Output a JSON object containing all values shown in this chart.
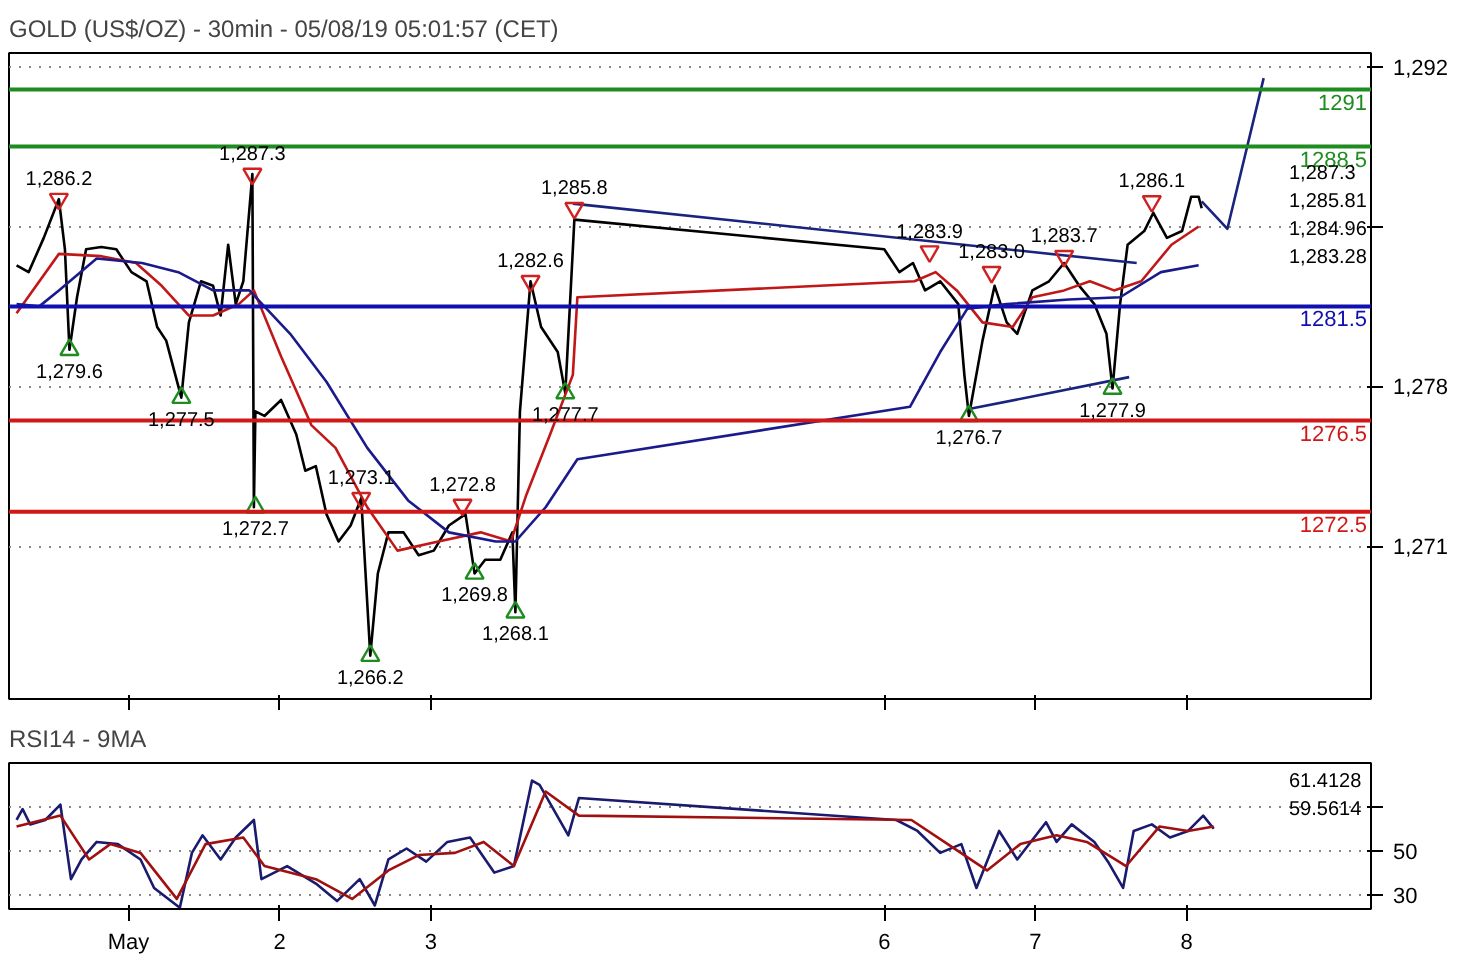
{
  "chart_data": [
    {
      "type": "line",
      "title": "GOLD (US$/OZ) - 30min - 05/08/19 05:01:57 (CET)",
      "xlim": [
        0.21,
        9.22
      ],
      "xticks": [
        1,
        2,
        3,
        6,
        7,
        8
      ],
      "ylim": [
        1264.3,
        1292.6
      ],
      "yticks": [
        {
          "value": 1271,
          "label": "1,271"
        },
        {
          "value": 1278,
          "label": "1,278"
        },
        {
          "value": 1285,
          "label": null
        },
        {
          "value": 1292,
          "label": "1,292"
        }
      ],
      "tick_labels": "y",
      "grid": "y",
      "ref_lines": [
        {
          "axis": "y",
          "value": 1291,
          "label": "1291",
          "color": "#1e8c1e"
        },
        {
          "axis": "y",
          "value": 1288.5,
          "label": "1288.5",
          "color": "#1e8c1e"
        },
        {
          "axis": "y",
          "value": 1281.5,
          "label": "1281.5",
          "color": "#1010b0"
        },
        {
          "axis": "y",
          "value": 1276.5,
          "label": "1276.5",
          "color": "#d01818"
        },
        {
          "axis": "y",
          "value": 1272.5,
          "label": "1272.5",
          "color": "#d01818"
        }
      ],
      "annotations": [
        "1,287.3",
        "1,285.81",
        "1,284.96",
        "1,283.28"
      ],
      "series": [
        {
          "color": "#000000",
          "x": [
            0.26,
            0.34,
            0.44,
            0.54,
            0.58,
            0.61,
            0.66,
            0.72,
            0.82,
            0.92,
            1.02,
            1.12,
            1.19,
            1.25,
            1.35,
            1.4,
            1.48,
            1.56,
            1.61,
            1.66,
            1.71,
            1.76,
            1.82,
            1.83,
            1.84,
            1.9,
            2.01,
            2.11,
            2.17,
            2.24,
            2.31,
            2.39,
            2.47,
            2.54,
            2.6,
            2.65,
            2.72,
            2.82,
            2.92,
            3.02,
            3.12,
            3.23,
            3.29,
            3.36,
            3.46,
            3.54,
            3.56,
            3.59,
            3.66,
            3.73,
            3.84,
            3.89,
            3.94,
            3.95,
            6.0,
            6.1,
            6.19,
            6.27,
            6.37,
            6.49,
            6.53,
            6.56,
            6.65,
            6.73,
            6.81,
            6.88,
            6.98,
            7.09,
            7.19,
            7.29,
            7.39,
            7.47,
            7.51,
            7.56,
            7.61,
            7.72,
            7.78,
            7.87,
            7.97,
            8.03,
            8.08,
            8.1
          ],
          "values": [
            1283.3,
            1283.0,
            1284.5,
            1286.2,
            1284.0,
            1279.6,
            1281.9,
            1284.0,
            1284.1,
            1284.0,
            1283.0,
            1282.6,
            1280.6,
            1280.0,
            1277.5,
            1280.8,
            1282.6,
            1282.4,
            1281.1,
            1284.2,
            1281.6,
            1282.6,
            1287.3,
            1272.7,
            1276.9,
            1276.7,
            1277.4,
            1275.9,
            1274.3,
            1274.5,
            1272.4,
            1271.2,
            1271.9,
            1273.1,
            1266.2,
            1269.8,
            1271.6,
            1271.6,
            1270.6,
            1270.8,
            1271.9,
            1272.4,
            1269.8,
            1270.4,
            1270.4,
            1271.6,
            1268.1,
            1276.9,
            1282.6,
            1280.6,
            1279.5,
            1277.7,
            1284.0,
            1285.3,
            1284.0,
            1283.0,
            1283.4,
            1282.2,
            1282.6,
            1281.6,
            1278.5,
            1276.7,
            1280.0,
            1282.4,
            1280.8,
            1280.3,
            1282.2,
            1282.6,
            1283.4,
            1282.4,
            1281.6,
            1280.3,
            1277.9,
            1281.6,
            1284.2,
            1284.8,
            1285.6,
            1284.5,
            1284.8,
            1286.3,
            1286.3,
            1285.8
          ]
        },
        {
          "color": "#c01818",
          "x": [
            0.26,
            0.54,
            0.82,
            1.05,
            1.22,
            1.4,
            1.56,
            1.73,
            1.83,
            2.01,
            2.21,
            2.37,
            2.58,
            2.78,
            3.05,
            3.33,
            3.53,
            3.63,
            3.79,
            3.94,
            3.97,
            6.2,
            6.34,
            6.48,
            6.65,
            6.85,
            6.98,
            7.19,
            7.36,
            7.52,
            7.7,
            7.9,
            8.08
          ],
          "values": [
            1281.2,
            1283.8,
            1283.7,
            1283.4,
            1282.4,
            1281.1,
            1281.1,
            1281.6,
            1282.2,
            1279.3,
            1276.3,
            1275.3,
            1272.7,
            1270.8,
            1271.2,
            1271.6,
            1271.2,
            1273.2,
            1275.9,
            1278.5,
            1281.9,
            1282.6,
            1283.0,
            1282.2,
            1280.8,
            1280.6,
            1281.9,
            1282.2,
            1282.6,
            1282.2,
            1282.6,
            1284.2,
            1285.0
          ]
        },
        {
          "color": "#1a1a8c",
          "x": [
            0.26,
            0.41,
            0.54,
            0.79,
            1.09,
            1.33,
            1.56,
            1.8,
            2.07,
            2.31,
            2.58,
            2.85,
            3.12,
            3.43,
            3.56,
            3.76,
            3.97,
            6.17,
            6.37,
            6.55,
            6.81,
            7.22,
            7.56,
            7.83,
            8.08
          ],
          "values": [
            1281.6,
            1281.5,
            1282.2,
            1283.6,
            1283.4,
            1283.0,
            1282.2,
            1282.2,
            1280.3,
            1278.2,
            1275.3,
            1273.0,
            1271.6,
            1271.2,
            1271.2,
            1272.7,
            1274.8,
            1277.1,
            1279.5,
            1281.4,
            1281.6,
            1281.8,
            1281.9,
            1283.0,
            1283.3
          ]
        },
        {
          "color": "#1a237e",
          "x": [
            3.94,
            7.67
          ],
          "values": [
            1286.0,
            1283.4
          ]
        },
        {
          "color": "#1a237e",
          "x": [
            6.56,
            7.62
          ],
          "values": [
            1277.0,
            1278.4
          ]
        },
        {
          "color": "#1a237e",
          "x": [
            8.1,
            8.27,
            8.51
          ],
          "values": [
            1286.1,
            1284.9,
            1291.5
          ]
        },
        {
          "type": "scatter",
          "color": "#d02020",
          "x": [
            0.54,
            1.82,
            2.54,
            3.21,
            3.66,
            3.95,
            6.3,
            6.71,
            7.19,
            7.77
          ],
          "values": [
            1286.2,
            1287.3,
            1273.1,
            1272.8,
            1282.6,
            1285.8,
            1283.9,
            1283.0,
            1283.7,
            1286.1
          ],
          "value_labels": [
            "1,286.2",
            "1,287.3",
            "1,273.1",
            "1,272.8",
            "1,282.6",
            "1,285.8",
            "1,283.9",
            "1,283.0",
            "1,283.7",
            "1,286.1"
          ]
        },
        {
          "type": "scatter",
          "marker": "triangle",
          "color": "#1e8c1e",
          "x": [
            0.61,
            1.35,
            1.84,
            2.6,
            3.29,
            3.56,
            3.89,
            6.56,
            7.51
          ],
          "values": [
            1279.6,
            1277.5,
            1272.7,
            1266.2,
            1269.8,
            1268.1,
            1277.7,
            1276.7,
            1277.9
          ],
          "value_labels": [
            "1,279.6",
            "1,277.5",
            "1,272.7",
            "1,266.2",
            "1,269.8",
            "1,268.1",
            "1,277.7",
            "1,276.7",
            "1,277.9"
          ]
        }
      ]
    },
    {
      "type": "line",
      "title": "RSI14 - 9MA",
      "xlim": [
        0.21,
        9.22
      ],
      "xticks": [
        {
          "value": 1,
          "label": "May"
        },
        2,
        3,
        6,
        7,
        8
      ],
      "ylim": [
        23.4,
        90
      ],
      "yticks": [
        30,
        50,
        {
          "value": 70,
          "label": null
        }
      ],
      "grid": "y",
      "annotations": [
        "61.4128",
        "59.5614"
      ],
      "series": [
        {
          "color": "#1a1a6e",
          "x": [
            0.26,
            0.3,
            0.35,
            0.45,
            0.55,
            0.62,
            0.69,
            0.79,
            0.93,
            1.08,
            1.17,
            1.34,
            1.42,
            1.49,
            1.61,
            1.71,
            1.83,
            1.88,
            2.05,
            2.24,
            2.38,
            2.53,
            2.63,
            2.72,
            2.84,
            2.97,
            3.11,
            3.26,
            3.42,
            3.55,
            3.67,
            3.72,
            3.91,
            3.98,
            6.08,
            6.22,
            6.37,
            6.51,
            6.61,
            6.76,
            6.88,
            7.07,
            7.14,
            7.24,
            7.39,
            7.48,
            7.58,
            7.65,
            7.77,
            7.89,
            8.01,
            8.11,
            8.18
          ],
          "values": [
            64,
            69,
            62,
            64,
            71,
            37,
            46,
            54,
            53,
            46,
            33,
            24,
            49,
            57,
            46,
            56,
            64,
            37,
            43,
            35,
            27,
            37,
            25,
            46,
            51,
            45,
            54,
            56,
            40,
            43,
            82,
            80,
            57,
            74,
            64,
            59,
            49,
            53,
            33,
            59,
            46,
            63,
            54,
            62,
            54,
            45,
            33,
            59,
            62,
            56,
            59,
            66,
            60
          ]
        },
        {
          "color": "#a01010",
          "x": [
            0.26,
            0.55,
            0.74,
            0.88,
            1.08,
            1.32,
            1.51,
            1.76,
            1.9,
            2.24,
            2.48,
            2.72,
            2.92,
            3.16,
            3.35,
            3.55,
            3.76,
            3.98,
            6.18,
            6.42,
            6.68,
            6.9,
            7.14,
            7.34,
            7.6,
            7.82,
            8.01,
            8.18
          ],
          "values": [
            61,
            66,
            46,
            53,
            49,
            28,
            53,
            56,
            43,
            37,
            28,
            41,
            48,
            49,
            54,
            43,
            77,
            66,
            64,
            53,
            41,
            53,
            57,
            54,
            43,
            61,
            59,
            61
          ]
        }
      ]
    }
  ]
}
